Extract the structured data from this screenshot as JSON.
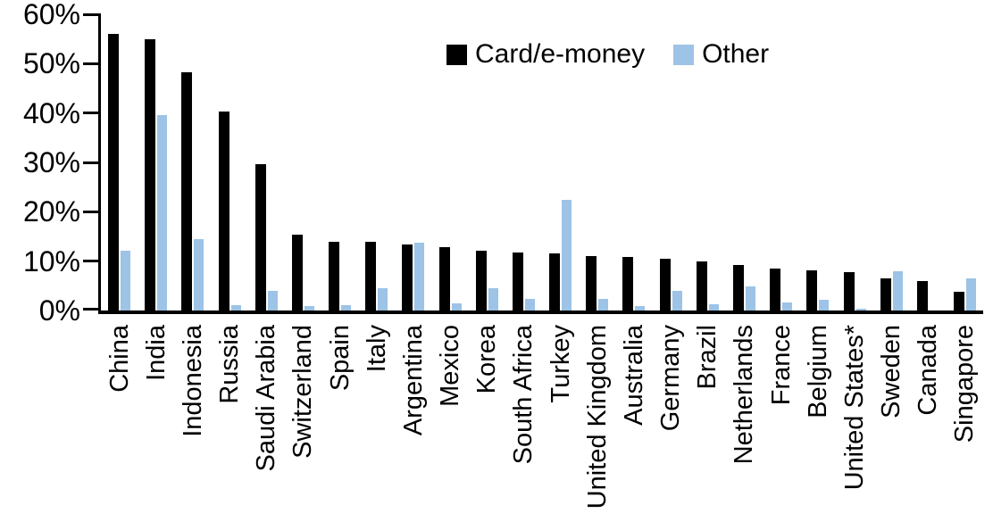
{
  "chart_data": {
    "type": "bar",
    "title": "",
    "xlabel": "",
    "ylabel": "",
    "ylim": [
      0,
      60
    ],
    "ytick_step": 10,
    "ytick_labels": [
      "60%",
      "50%",
      "40%",
      "30%",
      "20%",
      "10%",
      "0%"
    ],
    "grid": false,
    "legend_position": "top-center",
    "x_label_rotation": -90,
    "categories": [
      "China",
      "India",
      "Indonesia",
      "Russia",
      "Saudi Arabia",
      "Switzerland",
      "Spain",
      "Italy",
      "Argentina",
      "Mexico",
      "Korea",
      "South Africa",
      "Turkey",
      "United Kingdom",
      "Australia",
      "Germany",
      "Brazil",
      "Netherlands",
      "France",
      "Belgium",
      "United States*",
      "Sweden",
      "Canada",
      "Singapore"
    ],
    "series": [
      {
        "name": "Card/e-money",
        "color": "#000000",
        "values": [
          56,
          55,
          48.2,
          40.3,
          29.7,
          15.4,
          14,
          14,
          13.4,
          12.9,
          12.1,
          11.7,
          11.5,
          11,
          10.8,
          10.5,
          10,
          9.2,
          8.5,
          8.1,
          7.7,
          6.5,
          5.9,
          3.8
        ]
      },
      {
        "name": "Other",
        "color": "#9DC3E6",
        "values": [
          12.2,
          39.5,
          14.4,
          1.1,
          3.9,
          0.9,
          1.1,
          4.5,
          13.8,
          1.4,
          4.5,
          2.4,
          22.5,
          2.4,
          1,
          3.9,
          1.3,
          4.8,
          1.6,
          2.1,
          0.4,
          8,
          0,
          6.6
        ]
      }
    ]
  },
  "colors": {
    "axis": "#000000",
    "background": "#FFFFFF"
  }
}
